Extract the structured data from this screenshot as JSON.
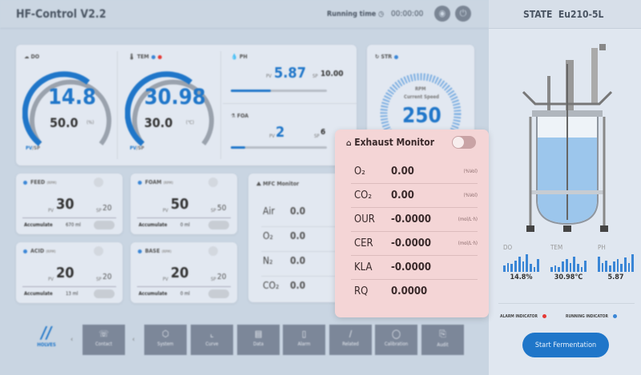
{
  "header": {
    "title": "HF-Control V2.2",
    "running_label": "Running time",
    "running_time": "00:00:00"
  },
  "do": {
    "label": "DO",
    "pv": "14.8",
    "sp": "50.0",
    "unit": "(%)",
    "legend_pv": "PV",
    "legend_sp": "/SP",
    "level": 0.3
  },
  "tem": {
    "label": "TEM",
    "pv": "30.98",
    "sp": "30.0",
    "unit": "(℃)",
    "legend_pv": "PV",
    "legend_sp": "/SP",
    "level": 0.6
  },
  "ph": {
    "label": "PH",
    "pv_label": "PV",
    "pv": "5.87",
    "sp_label": "SP",
    "sp": "10.00",
    "level": 0.42
  },
  "foa": {
    "label": "FOA",
    "pv_label": "PV",
    "pv": "2",
    "sp_label": "SP",
    "sp": "6",
    "level": 0.15
  },
  "str": {
    "label": "STR",
    "unit": "RPM",
    "caption": "Current Speed",
    "value": "250"
  },
  "pumps": [
    {
      "label": "FEED",
      "unit": "(RPM)",
      "pv_label": "PV",
      "pv": "30",
      "sp_label": "SP",
      "sp": "20",
      "acc_label": "Accumulate",
      "acc": "670 ml"
    },
    {
      "label": "FOAM",
      "unit": "(RPM)",
      "pv_label": "PV",
      "pv": "50",
      "sp_label": "SP",
      "sp": "50",
      "acc_label": "Accumulate",
      "acc": "0 ml"
    },
    {
      "label": "ACID",
      "unit": "(RPM)",
      "pv_label": "PV",
      "pv": "20",
      "sp_label": "SP",
      "sp": "20",
      "acc_label": "Accumulate",
      "acc": "13 ml"
    },
    {
      "label": "BASE",
      "unit": "(RPM)",
      "pv_label": "PV",
      "pv": "20",
      "sp_label": "SP",
      "sp": "20",
      "acc_label": "Accumulate",
      "acc": "0 ml"
    }
  ],
  "mfc": {
    "title": "MFC Monitor",
    "rows": [
      {
        "k": "Air",
        "v": "0.0"
      },
      {
        "k": "O₂",
        "v": "0.0"
      },
      {
        "k": "N₂",
        "v": "0.0"
      },
      {
        "k": "CO₂",
        "v": "0.0"
      }
    ]
  },
  "exhaust": {
    "title": "Exhaust Monitor",
    "enabled": false,
    "rows": [
      {
        "k": "O₂",
        "v": "0.00",
        "u": "(%Vol)"
      },
      {
        "k": "CO₂",
        "v": "0.00",
        "u": "(%Vol)"
      },
      {
        "k": "OUR",
        "v": "-0.0000",
        "u": "(mol/L·h)"
      },
      {
        "k": "CER",
        "v": "-0.0000",
        "u": "(mol/L·h)"
      },
      {
        "k": "KLA",
        "v": "-0.0000",
        "u": ""
      },
      {
        "k": "RQ",
        "v": "0.0000",
        "u": ""
      }
    ]
  },
  "nav": {
    "logo": "HOLVES",
    "items": [
      "Contact",
      "System",
      "Curve",
      "Data",
      "Alarm",
      "Related",
      "Calibration",
      "Audit"
    ]
  },
  "state": {
    "label": "STATE",
    "model": "Eu210-5L",
    "minis": [
      {
        "label": "DO",
        "value": "14.8%"
      },
      {
        "label": "TEM",
        "value": "30.98℃"
      },
      {
        "label": "PH",
        "value": "5.87"
      }
    ],
    "alarm_label": "ALARM INDICATOR",
    "running_label": "RUNNING INDICATOR",
    "start_button": "Start Fermentation"
  },
  "colors": {
    "accent": "#1f76c9",
    "alarm": "#e53935",
    "running": "#3a86d6",
    "modal": "#f4d5d6"
  }
}
